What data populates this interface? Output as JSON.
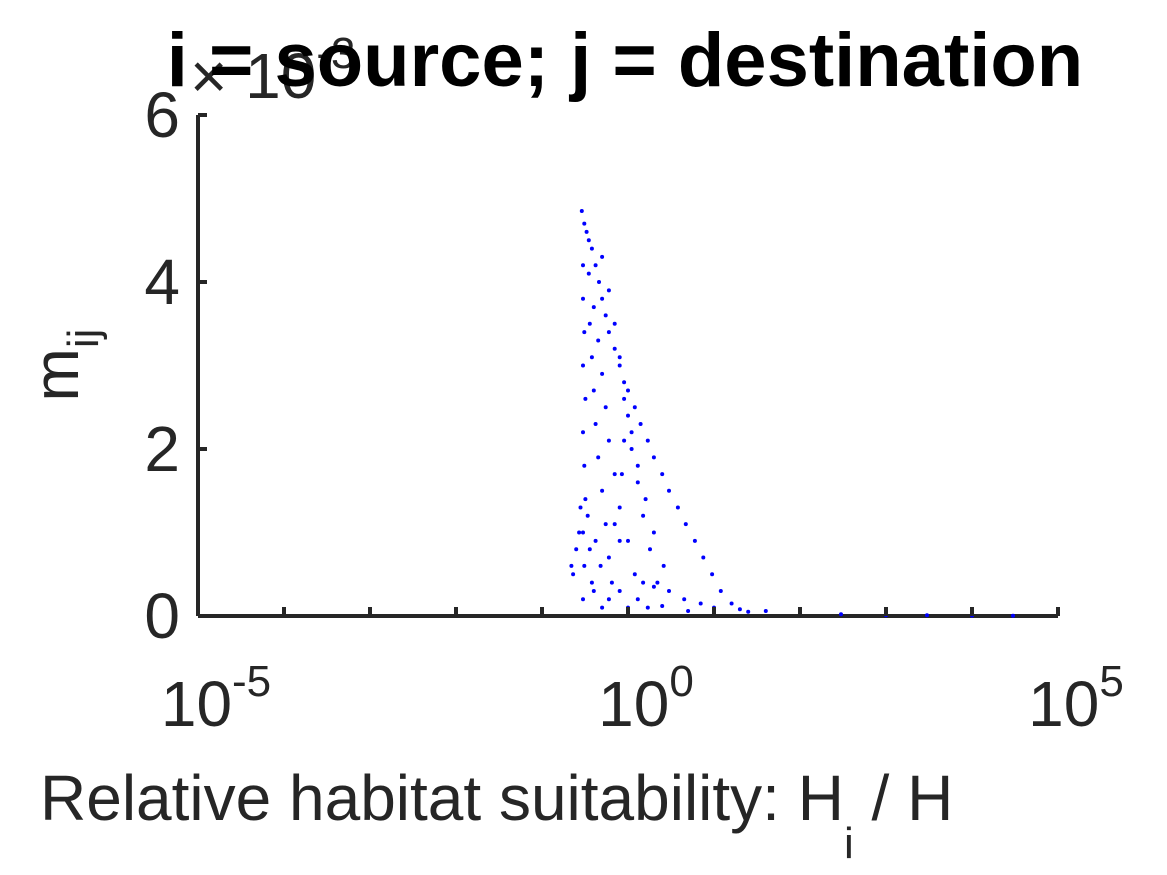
{
  "chart_data": {
    "type": "scatter",
    "title": "i = source; j = destination",
    "xlabel": {
      "text": "Relative habitat suitability: H",
      "sub": "i",
      "tail": " / H"
    },
    "ylabel": {
      "text": "m",
      "sub": "ij"
    },
    "x_scale": "log",
    "xlim": [
      1e-05,
      100000
    ],
    "ylim": [
      0,
      0.006
    ],
    "x_ticks": [
      {
        "base": "10",
        "exp": "-5",
        "value": 1e-05
      },
      {
        "base": "10",
        "exp": "0",
        "value": 1
      },
      {
        "base": "10",
        "exp": "5",
        "value": 100000
      }
    ],
    "y_ticks": [
      {
        "label": "0",
        "value": 0
      },
      {
        "label": "2",
        "value": 0.002
      },
      {
        "label": "4",
        "value": 0.004
      },
      {
        "label": "6",
        "value": 0.006
      }
    ],
    "y_multiplier": {
      "base": "× 10",
      "exp": "-3"
    },
    "marker_color": "#0000ff",
    "axis_color": "#262626",
    "series": [
      {
        "points": [
          [
            0.29,
            0.00485
          ],
          [
            0.31,
            0.0047
          ],
          [
            0.33,
            0.0046
          ],
          [
            0.35,
            0.0045
          ],
          [
            0.38,
            0.0044
          ],
          [
            0.42,
            0.0042
          ],
          [
            0.46,
            0.004
          ],
          [
            0.5,
            0.0038
          ],
          [
            0.55,
            0.0036
          ],
          [
            0.6,
            0.0034
          ],
          [
            0.7,
            0.0032
          ],
          [
            0.8,
            0.003
          ],
          [
            0.9,
            0.0028
          ],
          [
            1.0,
            0.0027
          ],
          [
            1.2,
            0.0025
          ],
          [
            1.4,
            0.0023
          ],
          [
            1.7,
            0.0021
          ],
          [
            2.0,
            0.0019
          ],
          [
            2.5,
            0.0017
          ],
          [
            3.0,
            0.0015
          ],
          [
            3.8,
            0.0013
          ],
          [
            4.7,
            0.0011
          ],
          [
            6.0,
            0.0009
          ],
          [
            7.5,
            0.0007
          ],
          [
            9.5,
            0.0005
          ],
          [
            12,
            0.0003
          ],
          [
            16,
            0.00015
          ],
          [
            25,
            5e-05
          ],
          [
            0.3,
            0.0042
          ],
          [
            0.3,
            0.0038
          ],
          [
            0.31,
            0.0034
          ],
          [
            0.3,
            0.003
          ],
          [
            0.32,
            0.0026
          ],
          [
            0.3,
            0.0022
          ],
          [
            0.31,
            0.0018
          ],
          [
            0.32,
            0.0014
          ],
          [
            0.3,
            0.001
          ],
          [
            0.31,
            0.0006
          ],
          [
            0.35,
            0.0041
          ],
          [
            0.4,
            0.0037
          ],
          [
            0.45,
            0.0033
          ],
          [
            0.5,
            0.0029
          ],
          [
            0.55,
            0.0025
          ],
          [
            0.6,
            0.0021
          ],
          [
            0.7,
            0.0017
          ],
          [
            0.8,
            0.0013
          ],
          [
            1.0,
            0.0009
          ],
          [
            1.2,
            0.0005
          ],
          [
            0.36,
            0.0035
          ],
          [
            0.38,
            0.0031
          ],
          [
            0.4,
            0.0027
          ],
          [
            0.42,
            0.0023
          ],
          [
            0.45,
            0.0019
          ],
          [
            0.5,
            0.0015
          ],
          [
            0.55,
            0.0011
          ],
          [
            0.6,
            0.0007
          ],
          [
            0.65,
            0.0004
          ],
          [
            0.5,
            0.0043
          ],
          [
            0.6,
            0.0039
          ],
          [
            0.7,
            0.0035
          ],
          [
            0.8,
            0.0031
          ],
          [
            0.9,
            0.0026
          ],
          [
            1.1,
            0.0022
          ],
          [
            1.3,
            0.0018
          ],
          [
            1.6,
            0.0014
          ],
          [
            2.0,
            0.001
          ],
          [
            2.6,
            0.0006
          ],
          [
            1.0,
            0.0024
          ],
          [
            1.1,
            0.002
          ],
          [
            1.3,
            0.0016
          ],
          [
            1.5,
            0.0012
          ],
          [
            1.8,
            0.0008
          ],
          [
            2.2,
            0.0004
          ],
          [
            0.9,
            0.0021
          ],
          [
            0.85,
            0.0017
          ],
          [
            0.8,
            0.0009
          ],
          [
            0.7,
            0.0011
          ],
          [
            0.34,
            0.0012
          ],
          [
            0.36,
            0.0008
          ],
          [
            0.38,
            0.0004
          ],
          [
            0.42,
            0.0009
          ],
          [
            0.48,
            0.0006
          ],
          [
            0.22,
            0.0006
          ],
          [
            0.23,
            0.0005
          ],
          [
            0.25,
            0.0008
          ],
          [
            0.27,
            0.001
          ],
          [
            0.28,
            0.0013
          ],
          [
            1.5,
            0.0004
          ],
          [
            2.0,
            0.00035
          ],
          [
            3.0,
            0.0003
          ],
          [
            4.5,
            0.0002
          ],
          [
            7.0,
            0.00015
          ],
          [
            10,
            0.0001
          ],
          [
            20,
            8e-05
          ],
          [
            40,
            6e-05
          ],
          [
            100,
            4e-05
          ],
          [
            300,
            2e-05
          ],
          [
            1000,
            1e-05
          ],
          [
            3000,
            1e-05
          ],
          [
            10000,
            5e-06
          ],
          [
            30000,
            3e-06
          ],
          [
            0.3,
            0.0002
          ],
          [
            0.4,
            0.0003
          ],
          [
            0.5,
            0.0001
          ],
          [
            0.6,
            0.0002
          ],
          [
            0.8,
            0.0003
          ],
          [
            1.0,
            0.0001
          ],
          [
            1.3,
            0.0002
          ],
          [
            1.7,
            0.0001
          ],
          [
            2.5,
            0.00012
          ],
          [
            5.0,
            6e-05
          ]
        ]
      }
    ]
  }
}
